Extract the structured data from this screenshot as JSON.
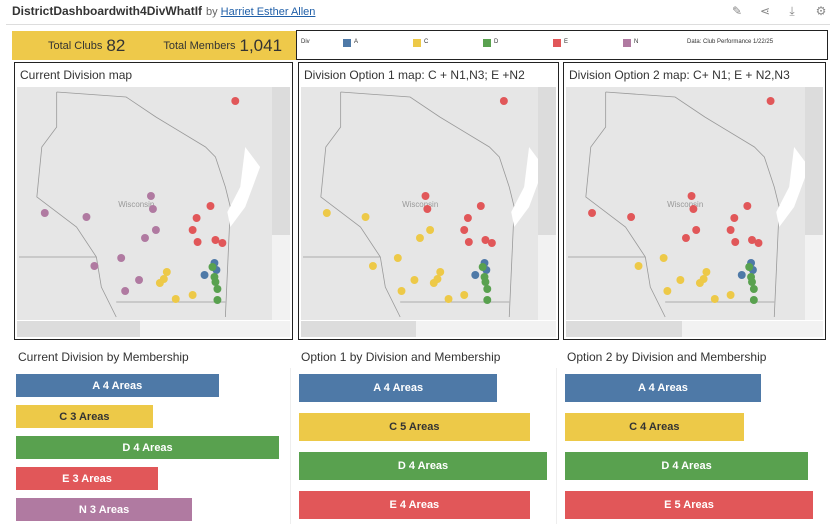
{
  "header": {
    "title": "DistrictDashboardwith4DivWhatIf",
    "by": "by",
    "author": "Harriet Esther Allen",
    "toolbar": [
      {
        "name": "edit-icon",
        "glyph": "✎"
      },
      {
        "name": "share-icon",
        "glyph": "⋖"
      },
      {
        "name": "download-icon",
        "glyph": "⤓"
      },
      {
        "name": "settings-icon",
        "glyph": "⚙"
      }
    ]
  },
  "kpi": {
    "clubs_label": "Total Clubs",
    "clubs_value": "82",
    "members_label": "Total Members",
    "members_value": "1,041"
  },
  "legend": {
    "title": "Div",
    "items": [
      {
        "label": "A",
        "color": "#4e79a7"
      },
      {
        "label": "C",
        "color": "#edc948"
      },
      {
        "label": "D",
        "color": "#59a14f"
      },
      {
        "label": "E",
        "color": "#e15759"
      },
      {
        "label": "N",
        "color": "#b07aa1"
      }
    ],
    "source": "Data: Club Performance 1/22/25"
  },
  "maps": [
    {
      "title": "Current Division map",
      "map_label": "Wisconsin"
    },
    {
      "title": "Division Option 1 map: C + N1,N3; E +N2",
      "map_label": "Wisconsin"
    },
    {
      "title": "Division Option 2 map: C+ N1; E + N2,N3",
      "map_label": "Wisconsin"
    }
  ],
  "bar_sections": [
    {
      "title": "Current Division by Membership",
      "bars": [
        {
          "label": "A  4 Areas",
          "div": "A",
          "value": 0.77
        },
        {
          "label": "C  3 Areas",
          "div": "C",
          "value": 0.52
        },
        {
          "label": "D  4 Areas",
          "div": "D",
          "value": 1.0
        },
        {
          "label": "E  3 Areas",
          "div": "E",
          "value": 0.54
        },
        {
          "label": "N  3 Areas",
          "div": "N",
          "value": 0.67
        }
      ]
    },
    {
      "title": "Option 1 by Division and Membership",
      "bars": [
        {
          "label": "A  4 Areas",
          "div": "A",
          "value": 0.8
        },
        {
          "label": "C  5 Areas",
          "div": "C",
          "value": 0.93
        },
        {
          "label": "D  4 Areas",
          "div": "D",
          "value": 1.0
        },
        {
          "label": "E  4 Areas",
          "div": "E",
          "value": 0.93
        }
      ]
    },
    {
      "title": "Option 2 by Division and Membership",
      "bars": [
        {
          "label": "A  4 Areas",
          "div": "A",
          "value": 0.79
        },
        {
          "label": "C  4 Areas",
          "div": "C",
          "value": 0.72
        },
        {
          "label": "D  4 Areas",
          "div": "D",
          "value": 0.98
        },
        {
          "label": "E  5 Areas",
          "div": "E",
          "value": 1.0
        }
      ]
    }
  ]
}
